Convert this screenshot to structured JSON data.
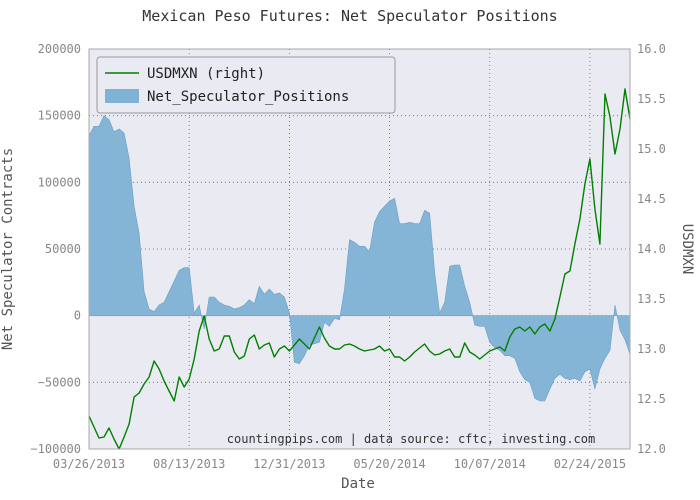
{
  "chart_data": {
    "type": "line",
    "title": "Mexican Peso Futures: Net Speculator Positions",
    "xlabel": "Date",
    "ylabel": "Net Speculator Contracts",
    "ylabel_right": "USDMXN",
    "source_note": "countingpips.com | data source: cftc, investing.com",
    "x_ticks": [
      "03/26/2013",
      "08/13/2013",
      "12/31/2013",
      "05/20/2014",
      "10/07/2014",
      "02/24/2015"
    ],
    "ylim": [
      -100000,
      200000
    ],
    "y_ticks": [
      "−100000",
      "−50000",
      "0",
      "50000",
      "100000",
      "150000",
      "200000"
    ],
    "ylim_right": [
      12.0,
      16.0
    ],
    "y_ticks_right": [
      "12.0",
      "12.5",
      "13.0",
      "13.5",
      "14.0",
      "14.5",
      "15.0",
      "15.5",
      "16.0"
    ],
    "grid": true,
    "legend_position": "top-left",
    "x_week_range": [
      0,
      108
    ],
    "series": [
      {
        "name": "USDMXN (right)",
        "kind": "line",
        "axis": "right",
        "color": "#008000",
        "x": [
          0,
          1,
          2,
          3,
          4,
          5,
          6,
          7,
          8,
          9,
          10,
          11,
          12,
          13,
          14,
          15,
          16,
          17,
          18,
          19,
          20,
          21,
          22,
          23,
          24,
          25,
          26,
          27,
          28,
          29,
          30,
          31,
          32,
          33,
          34,
          35,
          36,
          37,
          38,
          39,
          40,
          41,
          42,
          43,
          44,
          45,
          46,
          47,
          48,
          49,
          50,
          51,
          52,
          53,
          54,
          55,
          56,
          57,
          58,
          59,
          60,
          61,
          62,
          63,
          64,
          65,
          66,
          67,
          68,
          69,
          70,
          71,
          72,
          73,
          74,
          75,
          76,
          77,
          78,
          79,
          80,
          81,
          82,
          83,
          84,
          85,
          86,
          87,
          88,
          89,
          90,
          91,
          92,
          93,
          94,
          95,
          96,
          97,
          98,
          99,
          100,
          101,
          102,
          103,
          104,
          105,
          106,
          107,
          108
        ],
        "values": [
          12.33,
          12.22,
          12.11,
          12.12,
          12.21,
          12.1,
          12.0,
          12.12,
          12.25,
          12.52,
          12.56,
          12.65,
          12.72,
          12.88,
          12.8,
          12.68,
          12.58,
          12.48,
          12.72,
          12.62,
          12.7,
          12.9,
          13.18,
          13.33,
          13.1,
          12.98,
          13.0,
          13.13,
          13.13,
          12.97,
          12.9,
          12.93,
          13.1,
          13.14,
          13.0,
          13.04,
          13.06,
          12.92,
          13.0,
          13.03,
          12.98,
          13.04,
          13.1,
          13.05,
          13.0,
          13.11,
          13.22,
          13.11,
          13.03,
          13.0,
          13.0,
          13.04,
          13.05,
          13.03,
          13.0,
          12.98,
          12.99,
          13.0,
          13.03,
          12.98,
          13.0,
          12.92,
          12.92,
          12.88,
          12.92,
          12.97,
          13.01,
          13.05,
          12.98,
          12.94,
          12.95,
          12.98,
          13.0,
          12.92,
          12.92,
          13.06,
          12.97,
          12.94,
          12.9,
          12.94,
          12.98,
          13.0,
          13.02,
          12.98,
          13.12,
          13.2,
          13.22,
          13.18,
          13.22,
          13.15,
          13.22,
          13.25,
          13.18,
          13.3,
          13.52,
          13.75,
          13.78,
          14.05,
          14.3,
          14.65,
          14.9,
          14.4,
          14.05,
          15.55,
          15.32,
          14.95,
          15.2,
          15.6,
          15.3
        ],
        "values_note": "weekly closes estimated from chart"
      },
      {
        "name": "Net_Speculator_Positions",
        "kind": "area",
        "axis": "left",
        "color": "#7FB2D4",
        "x": [
          0,
          1,
          2,
          3,
          4,
          5,
          6,
          7,
          8,
          9,
          10,
          11,
          12,
          13,
          14,
          15,
          16,
          17,
          18,
          19,
          20,
          21,
          22,
          23,
          24,
          25,
          26,
          27,
          28,
          29,
          30,
          31,
          32,
          33,
          34,
          35,
          36,
          37,
          38,
          39,
          40,
          41,
          42,
          43,
          44,
          45,
          46,
          47,
          48,
          49,
          50,
          51,
          52,
          53,
          54,
          55,
          56,
          57,
          58,
          59,
          60,
          61,
          62,
          63,
          64,
          65,
          66,
          67,
          68,
          69,
          70,
          71,
          72,
          73,
          74,
          75,
          76,
          77,
          78,
          79,
          80,
          81,
          82,
          83,
          84,
          85,
          86,
          87,
          88,
          89,
          90,
          91,
          92,
          93,
          94,
          95,
          96,
          97,
          98,
          99,
          100,
          101,
          102,
          103,
          104,
          105,
          106,
          107,
          108
        ],
        "values": [
          135000,
          142000,
          142000,
          150000,
          147000,
          138000,
          140000,
          137000,
          118000,
          82000,
          62000,
          18000,
          5000,
          3000,
          8000,
          10000,
          18000,
          26000,
          34000,
          36000,
          36000,
          2000,
          8000,
          -10000,
          14000,
          14000,
          10000,
          8000,
          7000,
          5000,
          6000,
          8000,
          12000,
          9000,
          22000,
          16000,
          20000,
          16000,
          17000,
          14000,
          2000,
          -35000,
          -36000,
          -30000,
          -22000,
          -21000,
          -20000,
          -5000,
          -8000,
          -2000,
          -3000,
          20000,
          57000,
          55000,
          52000,
          52000,
          48000,
          70000,
          78000,
          82000,
          86000,
          88000,
          69000,
          69000,
          70000,
          69000,
          69000,
          79000,
          77000,
          33000,
          2000,
          10000,
          37000,
          38000,
          38000,
          22000,
          10000,
          -7000,
          -8000,
          -8000,
          -20000,
          -24000,
          -26000,
          -30000,
          -30000,
          -32000,
          -42000,
          -48000,
          -50000,
          -62000,
          -64000,
          -64000,
          -55000,
          -47000,
          -44000,
          -47000,
          -48000,
          -47000,
          -49000,
          -42000,
          -40000,
          -55000,
          -40000,
          -32000,
          -26000,
          8000,
          -11000,
          -18000,
          -29000
        ],
        "values_note": "weekly values estimated from chart"
      }
    ]
  },
  "colors": {
    "plot_background": "#EAEAF2",
    "outer_background": "#FFFFFF",
    "frame": "#AAAAAA",
    "grid": "#666666",
    "area_fill": "#7FB2D4",
    "line": "#008000"
  }
}
